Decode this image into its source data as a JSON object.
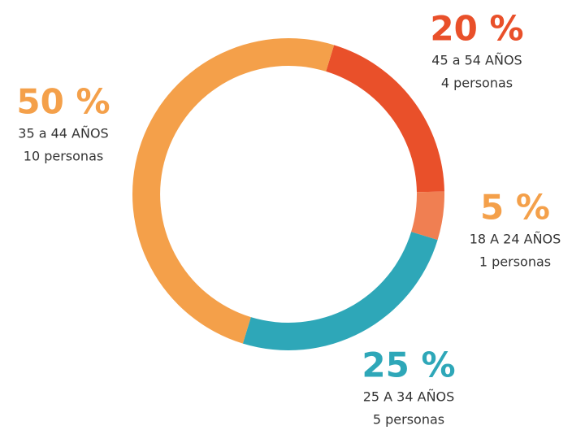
{
  "chart_data": {
    "type": "donut",
    "categories": [
      "45 a 54 AÑOS",
      "18 A 24 AÑOS",
      "25 A 34 AÑOS",
      "35 a 44 AÑOS"
    ],
    "details": [
      "4 personas",
      "1 personas",
      "5 personas",
      "10 personas"
    ],
    "values": [
      20,
      5,
      25,
      50
    ],
    "value_labels": [
      "20 %",
      "5 %",
      "25 %",
      "50 %"
    ],
    "colors": [
      "#e9502a",
      "#f07f52",
      "#2ea7b8",
      "#f4a04a"
    ],
    "label_colors": [
      "#e9502a",
      "#f4a04a",
      "#2ea7b8",
      "#f4a04a"
    ]
  }
}
